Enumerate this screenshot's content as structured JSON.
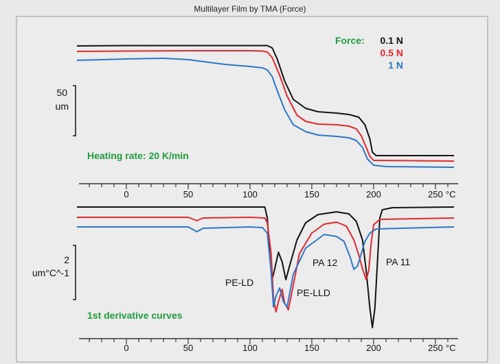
{
  "chart_data": {
    "type": "line",
    "title": "Multilayer Film by TMA (Force)",
    "x_unit": "°C",
    "xlim": [
      -40,
      265
    ],
    "x_ticks": [
      0,
      50,
      100,
      150,
      200,
      250
    ],
    "series_colors": {
      "0.1 N": "#111111",
      "0.5 N": "#e8262b",
      "1 N": "#2a77c9"
    },
    "legend": {
      "heading": "Force:",
      "entries": [
        {
          "label": "0.1 N",
          "color": "#111111"
        },
        {
          "label": "0.5 N",
          "color": "#e8262b"
        },
        {
          "label": "1 N",
          "color": "#2a77c9"
        }
      ]
    },
    "panels": [
      {
        "name": "tma",
        "scale_bar_label_lines": [
          "50",
          "um"
        ],
        "note": "Heating rate: 20 K/min",
        "series": [
          {
            "name": "0.1 N",
            "points": [
              [
                -40,
                67
              ],
              [
                0,
                66.5
              ],
              [
                50,
                66.5
              ],
              [
                100,
                66.5
              ],
              [
                114,
                66.5
              ],
              [
                118,
                70
              ],
              [
                122,
                86
              ],
              [
                128,
                118
              ],
              [
                135,
                145
              ],
              [
                145,
                158
              ],
              [
                155,
                163
              ],
              [
                170,
                165
              ],
              [
                180,
                167
              ],
              [
                188,
                171
              ],
              [
                193,
                182
              ],
              [
                197,
                203
              ],
              [
                199,
                222
              ],
              [
                202,
                227
              ],
              [
                265,
                227
              ]
            ]
          },
          {
            "name": "0.5 N",
            "points": [
              [
                -40,
                75
              ],
              [
                0,
                74.5
              ],
              [
                50,
                74
              ],
              [
                100,
                74
              ],
              [
                110,
                74.5
              ],
              [
                114,
                76
              ],
              [
                118,
                84
              ],
              [
                124,
                110
              ],
              [
                130,
                140
              ],
              [
                138,
                168
              ],
              [
                145,
                177
              ],
              [
                155,
                181
              ],
              [
                170,
                182
              ],
              [
                180,
                184
              ],
              [
                186,
                188
              ],
              [
                190,
                198
              ],
              [
                194,
                215
              ],
              [
                197,
                228
              ],
              [
                200,
                234
              ],
              [
                265,
                235
              ]
            ]
          },
          {
            "name": "1 N",
            "points": [
              [
                -40,
                88
              ],
              [
                0,
                86
              ],
              [
                30,
                85
              ],
              [
                50,
                87
              ],
              [
                80,
                94
              ],
              [
                100,
                97
              ],
              [
                110,
                99
              ],
              [
                114,
                102
              ],
              [
                118,
                112
              ],
              [
                122,
                132
              ],
              [
                128,
                160
              ],
              [
                135,
                182
              ],
              [
                145,
                192
              ],
              [
                155,
                197
              ],
              [
                170,
                199
              ],
              [
                180,
                201
              ],
              [
                186,
                205
              ],
              [
                191,
                215
              ],
              [
                195,
                232
              ],
              [
                200,
                241
              ],
              [
                210,
                243
              ],
              [
                265,
                244
              ]
            ]
          }
        ]
      },
      {
        "name": "derivative",
        "scale_bar_label_lines": [
          "2",
          "um°C^-1"
        ],
        "note": "1st derivative curves",
        "annotations": [
          "PE-LD",
          "PE-LLD",
          "PA 12",
          "PA 11"
        ],
        "series": [
          {
            "name": "0.1 N",
            "points": [
              [
                -40,
                302
              ],
              [
                50,
                302
              ],
              [
                100,
                302
              ],
              [
                112,
                302
              ],
              [
                114,
                318
              ],
              [
                116,
                375
              ],
              [
                118,
                407
              ],
              [
                120,
                392
              ],
              [
                123,
                368
              ],
              [
                126,
                382
              ],
              [
                129,
                408
              ],
              [
                132,
                388
              ],
              [
                138,
                350
              ],
              [
                145,
                325
              ],
              [
                155,
                313
              ],
              [
                170,
                309
              ],
              [
                180,
                312
              ],
              [
                186,
                323
              ],
              [
                191,
                350
              ],
              [
                194,
                395
              ],
              [
                197,
                450
              ],
              [
                199,
                478
              ],
              [
                201,
                450
              ],
              [
                203,
                385
              ],
              [
                205,
                318
              ],
              [
                207,
                306
              ],
              [
                215,
                303
              ],
              [
                265,
                302
              ]
            ]
          },
          {
            "name": "0.5 N",
            "points": [
              [
                -40,
                317
              ],
              [
                50,
                317
              ],
              [
                57,
                322
              ],
              [
                62,
                318
              ],
              [
                100,
                317
              ],
              [
                112,
                318
              ],
              [
                114,
                325
              ],
              [
                117,
                368
              ],
              [
                119,
                435
              ],
              [
                121,
                455
              ],
              [
                123,
                440
              ],
              [
                126,
                422
              ],
              [
                128,
                442
              ],
              [
                131,
                452
              ],
              [
                134,
                425
              ],
              [
                140,
                370
              ],
              [
                150,
                340
              ],
              [
                160,
                327
              ],
              [
                170,
                324
              ],
              [
                178,
                330
              ],
              [
                184,
                350
              ],
              [
                188,
                372
              ],
              [
                191,
                392
              ],
              [
                194,
                408
              ],
              [
                196,
                395
              ],
              [
                198,
                355
              ],
              [
                200,
                328
              ],
              [
                205,
                320
              ],
              [
                265,
                318
              ]
            ]
          },
          {
            "name": "1 N",
            "points": [
              [
                -40,
                331
              ],
              [
                50,
                331
              ],
              [
                57,
                338
              ],
              [
                62,
                333
              ],
              [
                100,
                331
              ],
              [
                110,
                332
              ],
              [
                114,
                340
              ],
              [
                117,
                395
              ],
              [
                119,
                448
              ],
              [
                121,
                432
              ],
              [
                124,
                420
              ],
              [
                127,
                440
              ],
              [
                130,
                448
              ],
              [
                135,
                400
              ],
              [
                145,
                362
              ],
              [
                160,
                342
              ],
              [
                170,
                345
              ],
              [
                176,
                352
              ],
              [
                181,
                375
              ],
              [
                184,
                393
              ],
              [
                187,
                388
              ],
              [
                190,
                370
              ],
              [
                193,
                352
              ],
              [
                197,
                340
              ],
              [
                202,
                334
              ],
              [
                265,
                331
              ]
            ]
          }
        ]
      }
    ]
  }
}
